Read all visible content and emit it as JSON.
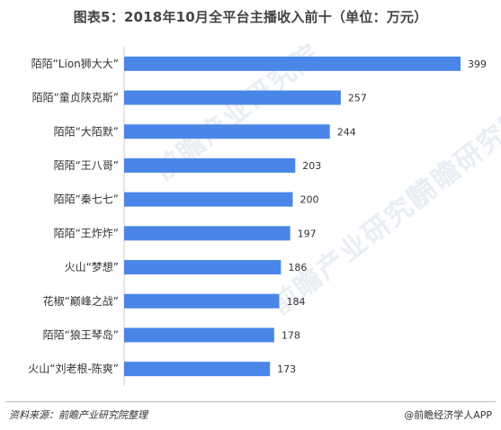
{
  "title": "图表5：2018年10月全平台主播收入前十（单位：万元）",
  "footer": {
    "source": "资料来源：前瞻产业研究院整理",
    "credit": "@前瞻经济学人APP"
  },
  "chart_data": {
    "type": "bar",
    "orientation": "horizontal",
    "title": "图表5：2018年10月全平台主播收入前十（单位：万元）",
    "categories": [
      "陌陌“Lion狮大大”",
      "陌陌“童贞陕克斯”",
      "陌陌“大陌默”",
      "陌陌“王八哥”",
      "陌陌“秦七七”",
      "陌陌“王炸炸”",
      "火山“梦想”",
      "花椒“巅峰之战”",
      "陌陌“狼王琴岛”",
      "火山“刘老根-陈爽”"
    ],
    "values": [
      399,
      257,
      244,
      203,
      200,
      197,
      186,
      184,
      178,
      173
    ],
    "xlim": [
      0,
      399
    ],
    "grid": false,
    "legend": false,
    "bar_color": "#4a86e8"
  }
}
